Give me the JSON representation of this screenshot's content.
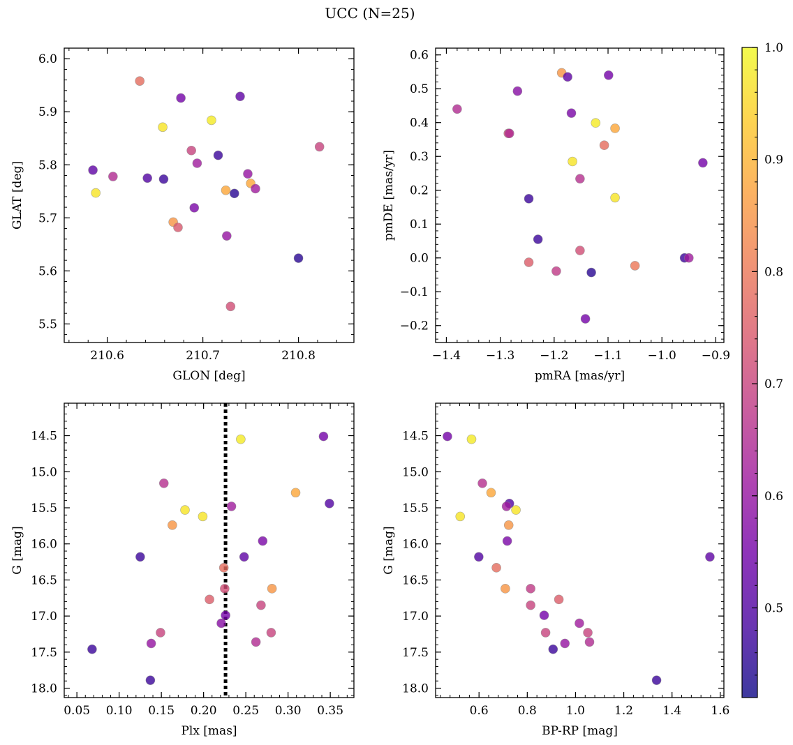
{
  "figure": {
    "title": "UCC (N=25)"
  },
  "colorbar": {
    "colormap": "plasma",
    "vmin": 0.42,
    "vmax": 1.0,
    "ticks": [
      0.5,
      0.6,
      0.7,
      0.8,
      0.9,
      1.0
    ],
    "tick_labels": [
      "0.5",
      "0.6",
      "0.7",
      "0.8",
      "0.9",
      "1.0"
    ],
    "stops": [
      "#0d0887",
      "#46039f",
      "#7201a8",
      "#9c179e",
      "#bd3786",
      "#d8576b",
      "#ed7953",
      "#fb9f3a",
      "#fdca26",
      "#f0f921"
    ],
    "marker_alpha": 0.8,
    "marker_edge_color": "#888888"
  },
  "chart_data": [
    {
      "type": "scatter",
      "name": "position",
      "xlabel": "GLON [deg]",
      "ylabel": "GLAT [deg]",
      "xlim": [
        210.555,
        210.858
      ],
      "ylim": [
        5.465,
        6.02
      ],
      "xticks": [
        210.6,
        210.7,
        210.8
      ],
      "xtick_labels": [
        "210.6",
        "210.7",
        "210.8"
      ],
      "yticks": [
        5.5,
        5.6,
        5.7,
        5.8,
        5.9,
        6.0
      ],
      "ytick_labels": [
        "5.5",
        "5.6",
        "5.7",
        "5.8",
        "5.9",
        "6.0"
      ],
      "invert_y": false,
      "grid": false,
      "points": [
        {
          "x": 210.634,
          "y": 5.958,
          "c": 0.78
        },
        {
          "x": 210.677,
          "y": 5.926,
          "c": 0.55
        },
        {
          "x": 210.739,
          "y": 5.929,
          "c": 0.52
        },
        {
          "x": 210.658,
          "y": 5.871,
          "c": 0.97
        },
        {
          "x": 210.709,
          "y": 5.884,
          "c": 0.98
        },
        {
          "x": 210.822,
          "y": 5.834,
          "c": 0.7
        },
        {
          "x": 210.688,
          "y": 5.827,
          "c": 0.7
        },
        {
          "x": 210.716,
          "y": 5.818,
          "c": 0.47
        },
        {
          "x": 210.694,
          "y": 5.803,
          "c": 0.62
        },
        {
          "x": 210.585,
          "y": 5.79,
          "c": 0.52
        },
        {
          "x": 210.606,
          "y": 5.778,
          "c": 0.65
        },
        {
          "x": 210.642,
          "y": 5.775,
          "c": 0.5
        },
        {
          "x": 210.659,
          "y": 5.773,
          "c": 0.47
        },
        {
          "x": 210.747,
          "y": 5.783,
          "c": 0.6
        },
        {
          "x": 210.75,
          "y": 5.765,
          "c": 0.88
        },
        {
          "x": 210.755,
          "y": 5.755,
          "c": 0.62
        },
        {
          "x": 210.588,
          "y": 5.747,
          "c": 0.97
        },
        {
          "x": 210.724,
          "y": 5.752,
          "c": 0.88
        },
        {
          "x": 210.733,
          "y": 5.746,
          "c": 0.45
        },
        {
          "x": 210.691,
          "y": 5.719,
          "c": 0.56
        },
        {
          "x": 210.669,
          "y": 5.692,
          "c": 0.85
        },
        {
          "x": 210.674,
          "y": 5.682,
          "c": 0.74
        },
        {
          "x": 210.725,
          "y": 5.666,
          "c": 0.6
        },
        {
          "x": 210.8,
          "y": 5.624,
          "c": 0.45
        },
        {
          "x": 210.729,
          "y": 5.533,
          "c": 0.72
        }
      ]
    },
    {
      "type": "scatter",
      "name": "proper-motion",
      "xlabel": "pmRA [mas/yr]",
      "ylabel": "pmDE [mas/yr]",
      "xlim": [
        -1.42,
        -0.885
      ],
      "ylim": [
        -0.25,
        0.62
      ],
      "xticks": [
        -1.4,
        -1.3,
        -1.2,
        -1.1,
        -1.0,
        -0.9
      ],
      "xtick_labels": [
        "−1.4",
        "−1.3",
        "−1.2",
        "−1.1",
        "−1.0",
        "−0.9"
      ],
      "yticks": [
        -0.2,
        -0.1,
        0.0,
        0.1,
        0.2,
        0.3,
        0.4,
        0.5,
        0.6
      ],
      "ytick_labels": [
        "−0.2",
        "−0.1",
        "0.0",
        "0.1",
        "0.2",
        "0.3",
        "0.4",
        "0.5",
        "0.6"
      ],
      "invert_y": false,
      "grid": false,
      "points": [
        {
          "x": -1.186,
          "y": 0.547,
          "c": 0.85
        },
        {
          "x": -1.175,
          "y": 0.535,
          "c": 0.52
        },
        {
          "x": -1.099,
          "y": 0.54,
          "c": 0.55
        },
        {
          "x": -1.268,
          "y": 0.493,
          "c": 0.58
        },
        {
          "x": -1.38,
          "y": 0.44,
          "c": 0.65
        },
        {
          "x": -1.168,
          "y": 0.428,
          "c": 0.56
        },
        {
          "x": -1.123,
          "y": 0.399,
          "c": 0.98
        },
        {
          "x": -1.087,
          "y": 0.383,
          "c": 0.88
        },
        {
          "x": -1.285,
          "y": 0.368,
          "c": 0.72
        },
        {
          "x": -1.283,
          "y": 0.368,
          "c": 0.65
        },
        {
          "x": -1.107,
          "y": 0.333,
          "c": 0.78
        },
        {
          "x": -1.166,
          "y": 0.285,
          "c": 0.97
        },
        {
          "x": -0.924,
          "y": 0.281,
          "c": 0.55
        },
        {
          "x": -1.152,
          "y": 0.234,
          "c": 0.66
        },
        {
          "x": -1.087,
          "y": 0.178,
          "c": 0.97
        },
        {
          "x": -1.247,
          "y": 0.175,
          "c": 0.47
        },
        {
          "x": -1.23,
          "y": 0.055,
          "c": 0.47
        },
        {
          "x": -1.152,
          "y": 0.022,
          "c": 0.72
        },
        {
          "x": -0.958,
          "y": 0.0,
          "c": 0.47
        },
        {
          "x": -0.95,
          "y": 0.0,
          "c": 0.62
        },
        {
          "x": -1.247,
          "y": -0.013,
          "c": 0.75
        },
        {
          "x": -1.05,
          "y": -0.023,
          "c": 0.8
        },
        {
          "x": -1.196,
          "y": -0.039,
          "c": 0.68
        },
        {
          "x": -1.131,
          "y": -0.043,
          "c": 0.45
        },
        {
          "x": -1.142,
          "y": -0.18,
          "c": 0.55
        }
      ]
    },
    {
      "type": "scatter",
      "name": "parallax-magnitude",
      "xlabel": "Plx [mas]",
      "ylabel": "G [mag]",
      "xlim": [
        0.035,
        0.378
      ],
      "ylim": [
        18.13,
        14.05
      ],
      "xticks": [
        0.05,
        0.1,
        0.15,
        0.2,
        0.25,
        0.3,
        0.35
      ],
      "xtick_labels": [
        "0.05",
        "0.10",
        "0.15",
        "0.20",
        "0.25",
        "0.30",
        "0.35"
      ],
      "yticks": [
        14.5,
        15.0,
        15.5,
        16.0,
        16.5,
        17.0,
        17.5,
        18.0
      ],
      "ytick_labels": [
        "14.5",
        "15.0",
        "15.5",
        "16.0",
        "16.5",
        "17.0",
        "17.5",
        "18.0"
      ],
      "invert_y": true,
      "grid": false,
      "vline": {
        "x": 0.226,
        "style": "dotted",
        "color": "#000000"
      },
      "points": [
        {
          "x": 0.244,
          "y": 14.55,
          "c": 0.98
        },
        {
          "x": 0.342,
          "y": 14.51,
          "c": 0.55
        },
        {
          "x": 0.153,
          "y": 15.16,
          "c": 0.66
        },
        {
          "x": 0.309,
          "y": 15.29,
          "c": 0.88
        },
        {
          "x": 0.349,
          "y": 15.44,
          "c": 0.5
        },
        {
          "x": 0.233,
          "y": 15.48,
          "c": 0.62
        },
        {
          "x": 0.178,
          "y": 15.53,
          "c": 0.97
        },
        {
          "x": 0.199,
          "y": 15.62,
          "c": 0.97
        },
        {
          "x": 0.163,
          "y": 15.74,
          "c": 0.85
        },
        {
          "x": 0.27,
          "y": 15.96,
          "c": 0.56
        },
        {
          "x": 0.125,
          "y": 16.18,
          "c": 0.47
        },
        {
          "x": 0.248,
          "y": 16.18,
          "c": 0.52
        },
        {
          "x": 0.224,
          "y": 16.33,
          "c": 0.78
        },
        {
          "x": 0.225,
          "y": 16.62,
          "c": 0.72
        },
        {
          "x": 0.281,
          "y": 16.62,
          "c": 0.85
        },
        {
          "x": 0.207,
          "y": 16.77,
          "c": 0.75
        },
        {
          "x": 0.268,
          "y": 16.85,
          "c": 0.7
        },
        {
          "x": 0.226,
          "y": 16.99,
          "c": 0.55
        },
        {
          "x": 0.221,
          "y": 17.1,
          "c": 0.58
        },
        {
          "x": 0.149,
          "y": 17.23,
          "c": 0.7
        },
        {
          "x": 0.28,
          "y": 17.23,
          "c": 0.7
        },
        {
          "x": 0.138,
          "y": 17.38,
          "c": 0.6
        },
        {
          "x": 0.262,
          "y": 17.36,
          "c": 0.65
        },
        {
          "x": 0.068,
          "y": 17.46,
          "c": 0.47
        },
        {
          "x": 0.137,
          "y": 17.89,
          "c": 0.47
        }
      ]
    },
    {
      "type": "scatter",
      "name": "color-magnitude",
      "xlabel": "BP-RP [mag]",
      "ylabel": "G [mag]",
      "xlim": [
        0.42,
        1.615
      ],
      "ylim": [
        18.13,
        14.05
      ],
      "xticks": [
        0.6,
        0.8,
        1.0,
        1.2,
        1.4,
        1.6
      ],
      "xtick_labels": [
        "0.6",
        "0.8",
        "1.0",
        "1.2",
        "1.4",
        "1.6"
      ],
      "yticks": [
        14.5,
        15.0,
        15.5,
        16.0,
        16.5,
        17.0,
        17.5,
        18.0
      ],
      "ytick_labels": [
        "14.5",
        "15.0",
        "15.5",
        "16.0",
        "16.5",
        "17.0",
        "17.5",
        "18.0"
      ],
      "invert_y": true,
      "grid": false,
      "points": [
        {
          "x": 0.469,
          "y": 14.51,
          "c": 0.55
        },
        {
          "x": 0.569,
          "y": 14.55,
          "c": 0.98
        },
        {
          "x": 0.614,
          "y": 15.16,
          "c": 0.66
        },
        {
          "x": 0.65,
          "y": 15.29,
          "c": 0.88
        },
        {
          "x": 0.726,
          "y": 15.44,
          "c": 0.5
        },
        {
          "x": 0.714,
          "y": 15.48,
          "c": 0.62
        },
        {
          "x": 0.753,
          "y": 15.53,
          "c": 0.97
        },
        {
          "x": 0.522,
          "y": 15.62,
          "c": 0.97
        },
        {
          "x": 0.723,
          "y": 15.74,
          "c": 0.85
        },
        {
          "x": 0.717,
          "y": 15.96,
          "c": 0.56
        },
        {
          "x": 0.599,
          "y": 16.18,
          "c": 0.5
        },
        {
          "x": 1.557,
          "y": 16.18,
          "c": 0.52
        },
        {
          "x": 0.672,
          "y": 16.33,
          "c": 0.78
        },
        {
          "x": 0.709,
          "y": 16.62,
          "c": 0.85
        },
        {
          "x": 0.814,
          "y": 16.62,
          "c": 0.68
        },
        {
          "x": 0.931,
          "y": 16.77,
          "c": 0.75
        },
        {
          "x": 0.814,
          "y": 16.85,
          "c": 0.7
        },
        {
          "x": 0.87,
          "y": 16.99,
          "c": 0.55
        },
        {
          "x": 1.016,
          "y": 17.1,
          "c": 0.62
        },
        {
          "x": 0.876,
          "y": 17.23,
          "c": 0.7
        },
        {
          "x": 1.051,
          "y": 17.23,
          "c": 0.7
        },
        {
          "x": 0.956,
          "y": 17.38,
          "c": 0.6
        },
        {
          "x": 1.058,
          "y": 17.36,
          "c": 0.65
        },
        {
          "x": 0.907,
          "y": 17.46,
          "c": 0.47
        },
        {
          "x": 1.336,
          "y": 17.89,
          "c": 0.47
        }
      ]
    }
  ]
}
